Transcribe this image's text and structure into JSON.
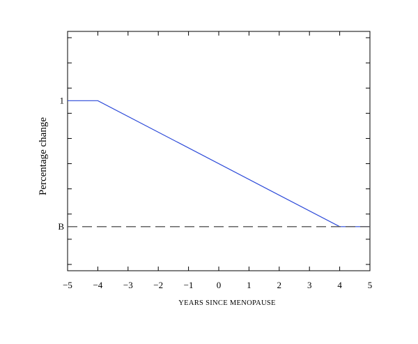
{
  "chart_data": {
    "type": "line",
    "xlabel": "YEARS  SINCE  MENOPAUSE",
    "ylabel": "Percentage change",
    "xlim": [
      -5,
      5
    ],
    "ylim": [
      -0.35,
      1.55
    ],
    "x_ticks": [
      -5,
      -4,
      -3,
      -2,
      -1,
      0,
      1,
      2,
      3,
      4,
      5
    ],
    "x_tick_labels": [
      "−5",
      "−4",
      "−3",
      "−2",
      "−1",
      "0",
      "1",
      "2",
      "3",
      "4",
      "5"
    ],
    "y_ticks": [
      -0.3,
      -0.1,
      0.1,
      0.3,
      0.5,
      0.7,
      0.9,
      1.1,
      1.3,
      1.5
    ],
    "y_tick_labels": [
      {
        "value": 1,
        "label": "1"
      },
      {
        "value": 0,
        "label": "B"
      }
    ],
    "grid": false,
    "series": [
      {
        "color": "#2a48d8",
        "style": "solid",
        "x": [
          -5,
          -4,
          4,
          5
        ],
        "y": [
          1,
          1,
          0,
          0
        ]
      },
      {
        "color": "#555555",
        "style": "dashed",
        "x": [
          -5,
          5
        ],
        "y": [
          0,
          0
        ]
      }
    ]
  }
}
